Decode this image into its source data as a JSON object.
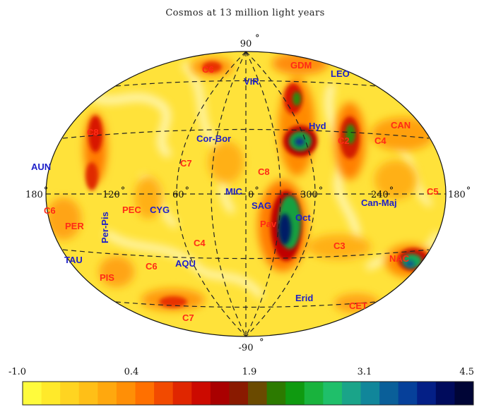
{
  "title": "Cosmos at 13 million light years",
  "poles": {
    "north": "90",
    "south": "-90"
  },
  "longitude_labels": [
    "180",
    "120",
    "60",
    "0",
    "300",
    "240",
    "180"
  ],
  "labels": [
    {
      "text": "GDM",
      "color": "red"
    },
    {
      "text": "LEO",
      "color": "blue"
    },
    {
      "text": "VIR",
      "color": "blue"
    },
    {
      "text": "C6",
      "color": "red"
    },
    {
      "text": "CAN",
      "color": "red"
    },
    {
      "text": "C4",
      "color": "red"
    },
    {
      "text": "Hyd",
      "color": "blue"
    },
    {
      "text": "C2",
      "color": "red"
    },
    {
      "text": "Cor-Bor",
      "color": "blue"
    },
    {
      "text": "C7",
      "color": "red"
    },
    {
      "text": "AUN",
      "color": "blue"
    },
    {
      "text": "C8",
      "color": "red"
    },
    {
      "text": "C8",
      "color": "red"
    },
    {
      "text": "MIC",
      "color": "blue"
    },
    {
      "text": "SAG",
      "color": "blue"
    },
    {
      "text": "Oct",
      "color": "blue"
    },
    {
      "text": "Can-Maj",
      "color": "blue"
    },
    {
      "text": "C5",
      "color": "red"
    },
    {
      "text": "PEC",
      "color": "red"
    },
    {
      "text": "CYG",
      "color": "blue"
    },
    {
      "text": "Per-Pis",
      "color": "blue"
    },
    {
      "text": "C6",
      "color": "red"
    },
    {
      "text": "PER",
      "color": "red"
    },
    {
      "text": "C4",
      "color": "red"
    },
    {
      "text": "AQU",
      "color": "blue"
    },
    {
      "text": "C3",
      "color": "red"
    },
    {
      "text": "NAC",
      "color": "red"
    },
    {
      "text": "TAU",
      "color": "blue"
    },
    {
      "text": "PIS",
      "color": "red"
    },
    {
      "text": "C6",
      "color": "red"
    },
    {
      "text": "C7",
      "color": "red"
    },
    {
      "text": "Erid",
      "color": "blue"
    },
    {
      "text": "CET",
      "color": "red"
    },
    {
      "text": "Pav",
      "color": "red"
    }
  ],
  "colorbar": {
    "ticks": [
      "-1.0",
      "0.4",
      "1.9",
      "3.1",
      "4.5"
    ],
    "colors": [
      "#fffb3c",
      "#ffe92a",
      "#ffd421",
      "#ffbf17",
      "#ffa80e",
      "#ff8f06",
      "#ff7000",
      "#f24a00",
      "#e02600",
      "#cc0a00",
      "#a90000",
      "#8a1a00",
      "#6a4a00",
      "#2c7a00",
      "#0f9a10",
      "#19b33d",
      "#1fbf6a",
      "#1aa489",
      "#11869a",
      "#0a5f99",
      "#06409a",
      "#041f86",
      "#000b5c",
      "#000536"
    ]
  },
  "palette": {
    "red_label": "#ff2a16",
    "blue_label": "#1d1fc8",
    "field": "#ffe23a",
    "grid": "#222222"
  }
}
